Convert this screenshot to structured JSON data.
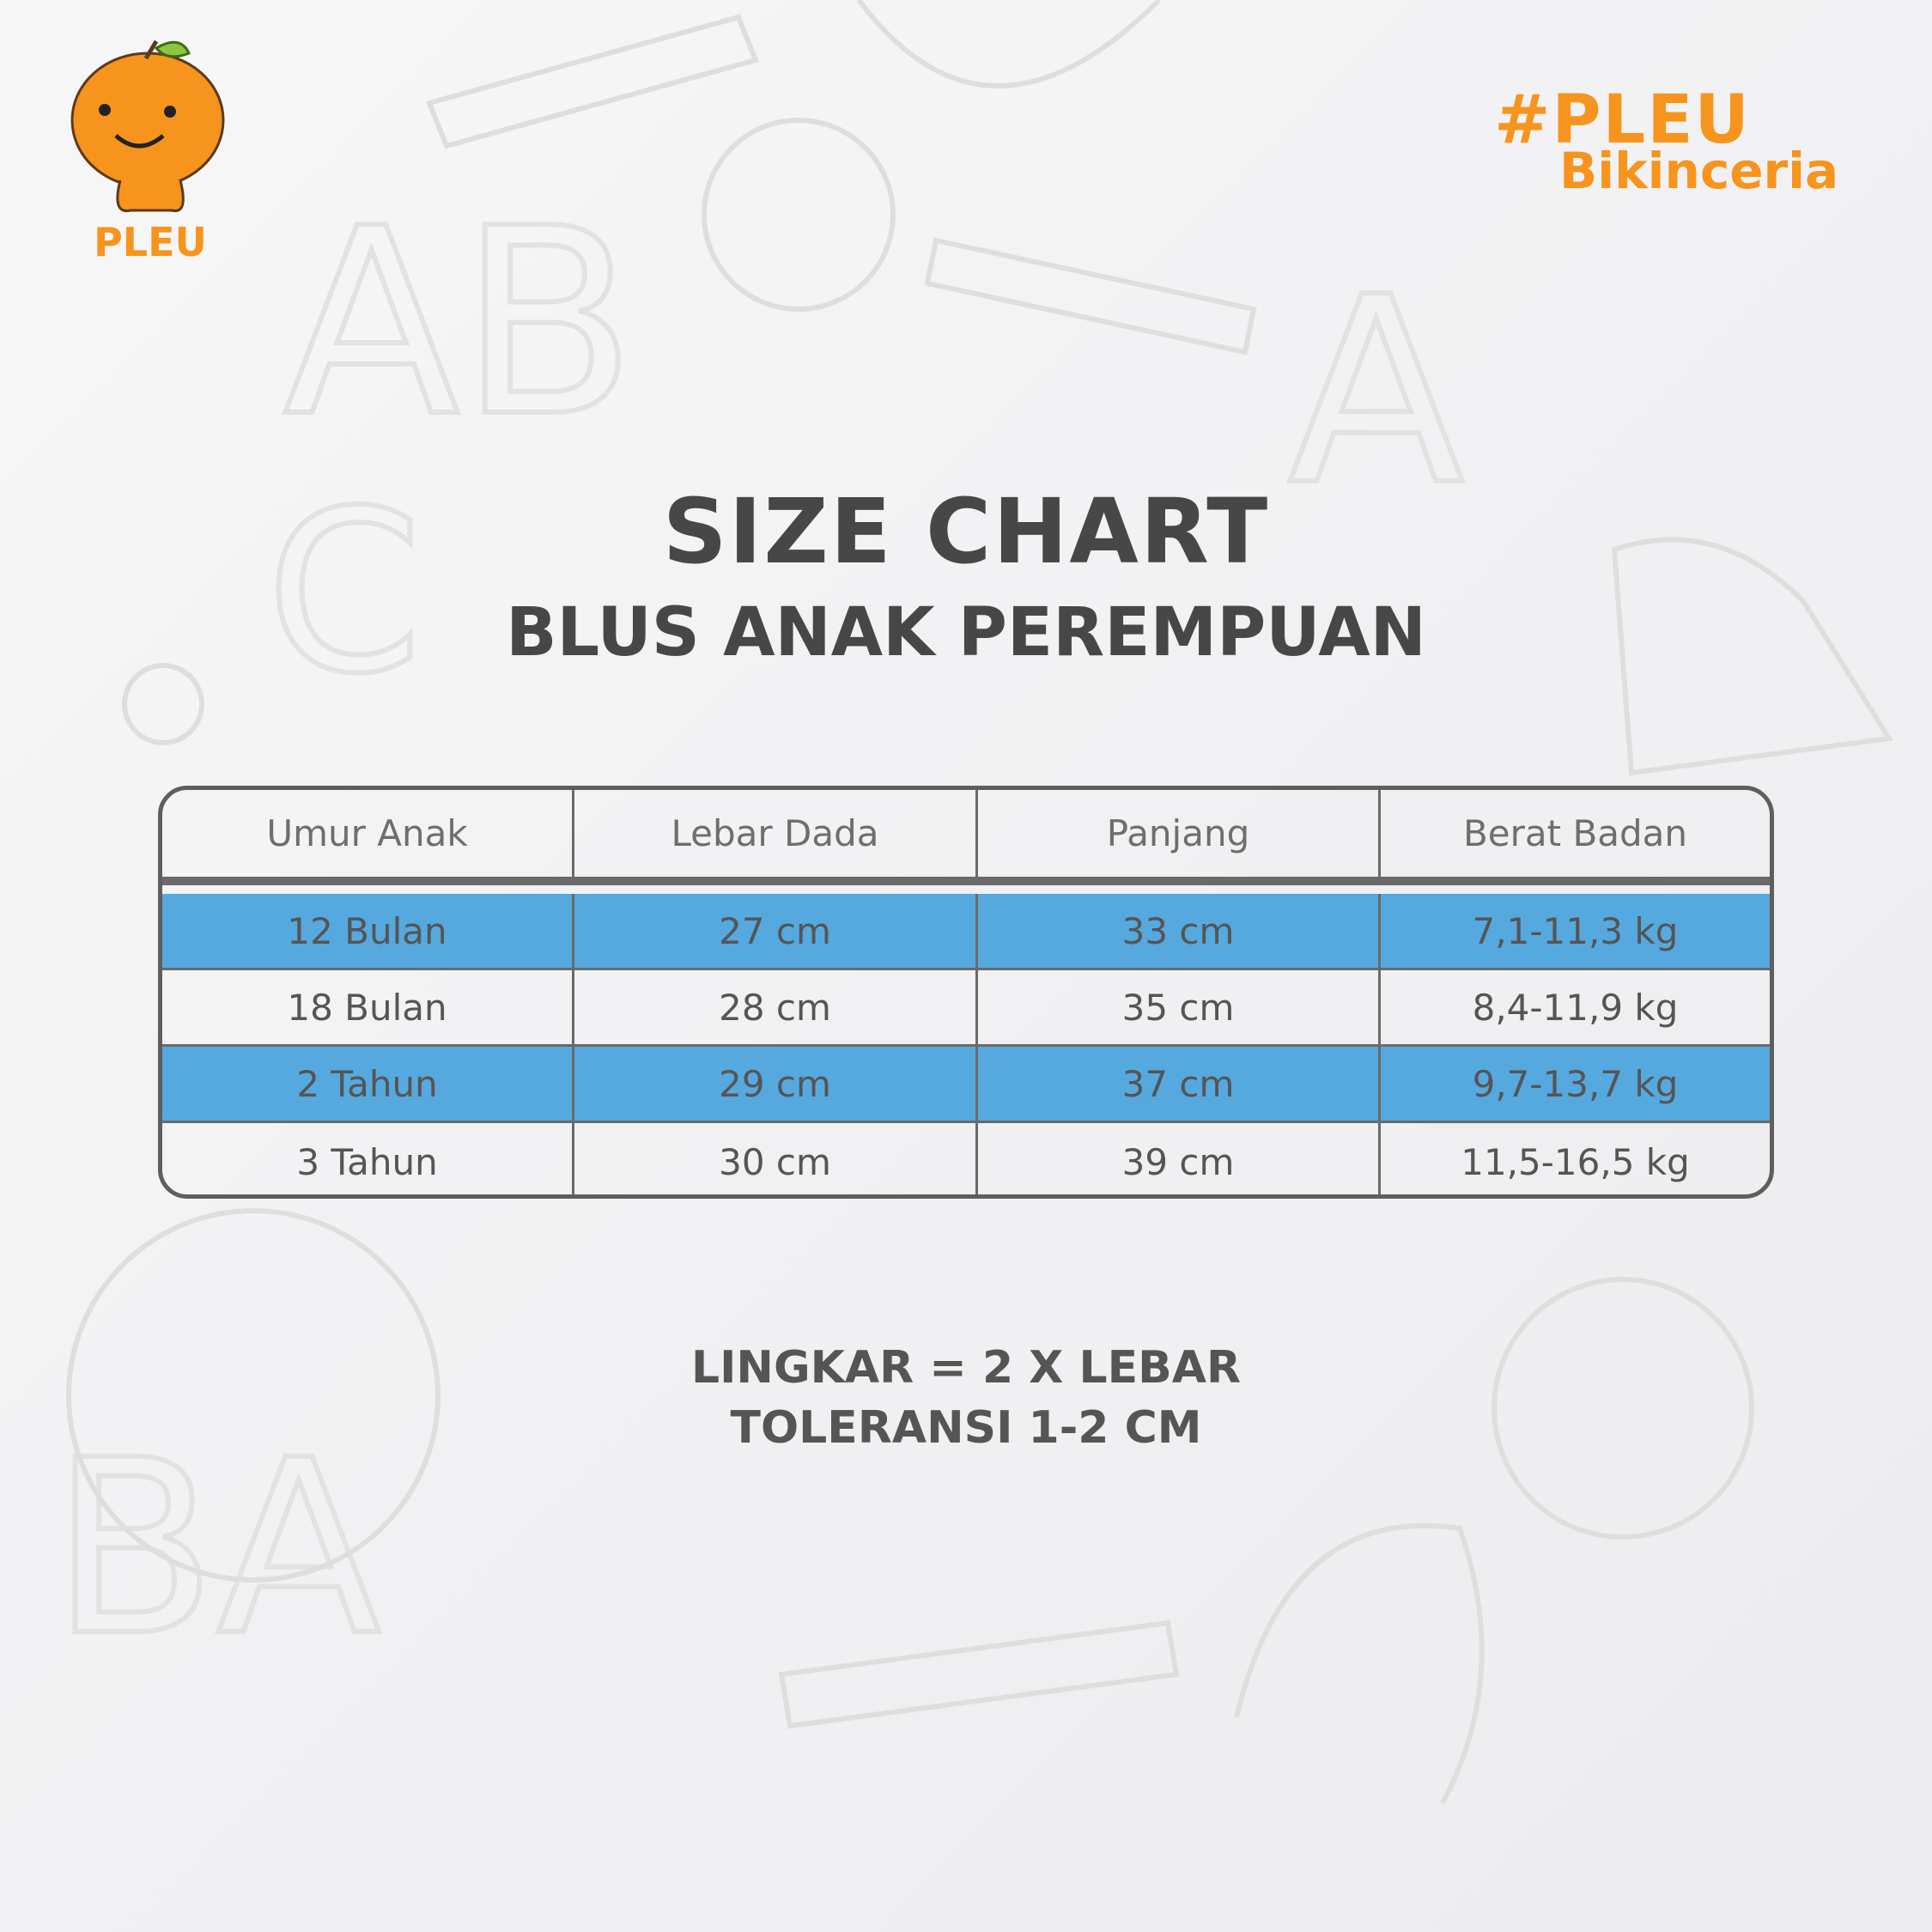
{
  "brand": {
    "logo_text": "PLEU",
    "hashtag_line1": "#PLEU",
    "hashtag_line2": "Bikinceria",
    "color": "#f7941d"
  },
  "title": "SIZE CHART",
  "subtitle": "BLUS ANAK PEREMPUAN",
  "table": {
    "headers": [
      "Umur Anak",
      "Lebar Dada",
      "Panjang",
      "Berat Badan"
    ],
    "rows": [
      [
        "12 Bulan",
        "27 cm",
        "33 cm",
        "7,1-11,3 kg"
      ],
      [
        "18 Bulan",
        "28 cm",
        "35 cm",
        "8,4-11,9 kg"
      ],
      [
        "2 Tahun",
        "29 cm",
        "37 cm",
        "9,7-13,7 kg"
      ],
      [
        "3 Tahun",
        "30 cm",
        "39 cm",
        "11,5-16,5 kg"
      ]
    ],
    "highlight_color": "#55a9de"
  },
  "notes": [
    "LINGKAR = 2 X LEBAR",
    "TOLERANSI 1-2 CM"
  ]
}
